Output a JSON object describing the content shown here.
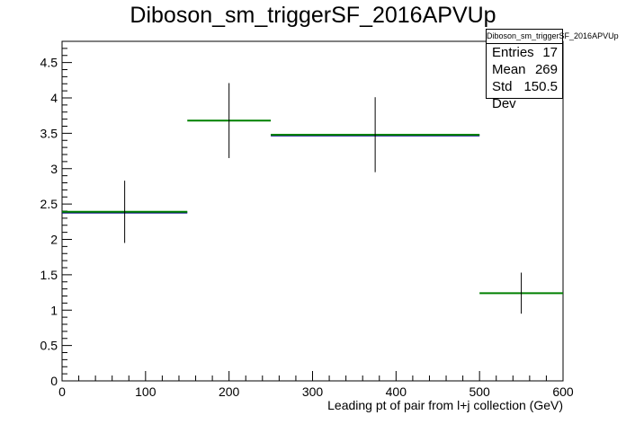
{
  "title": "Diboson_sm_triggerSF_2016APVUp",
  "stats": {
    "name": "Diboson_sm_triggerSF_2016APVUp",
    "rows": [
      {
        "label": "Entries",
        "value": "17"
      },
      {
        "label": "Mean",
        "value": "269"
      },
      {
        "label": "Std Dev",
        "value": "150.5"
      }
    ]
  },
  "chart_data": {
    "type": "histogram",
    "title": "Diboson_sm_triggerSF_2016APVUp",
    "xlabel": "Leading pt of pair from l+j collection (GeV)",
    "ylabel": "",
    "xlim": [
      0,
      600
    ],
    "ylim": [
      0,
      4.8
    ],
    "x_ticks": [
      0,
      100,
      200,
      300,
      400,
      500,
      600
    ],
    "y_ticks": [
      0,
      0.5,
      1,
      1.5,
      2,
      2.5,
      3,
      3.5,
      4,
      4.5
    ],
    "x_tick_labels": [
      "0",
      "100",
      "200",
      "300",
      "400",
      "500",
      "600"
    ],
    "y_tick_labels": [
      "0",
      "0.5",
      "1",
      "1.5",
      "2",
      "2.5",
      "3",
      "3.5",
      "4",
      "4.5"
    ],
    "grid": false,
    "legend": "stats box top-right",
    "colors": {
      "nominal": "#000080",
      "variation": "#008000",
      "error": "#000000"
    },
    "bins": [
      {
        "xlow": 0,
        "xhigh": 150,
        "value": 2.39,
        "err": 0.44,
        "nominal": 2.38
      },
      {
        "xlow": 150,
        "xhigh": 250,
        "value": 3.68,
        "err": 0.53,
        "nominal": null
      },
      {
        "xlow": 250,
        "xhigh": 500,
        "value": 3.48,
        "err": 0.53,
        "nominal": 3.47
      },
      {
        "xlow": 500,
        "xhigh": 600,
        "value": 1.24,
        "err": 0.29,
        "nominal": null
      }
    ]
  }
}
